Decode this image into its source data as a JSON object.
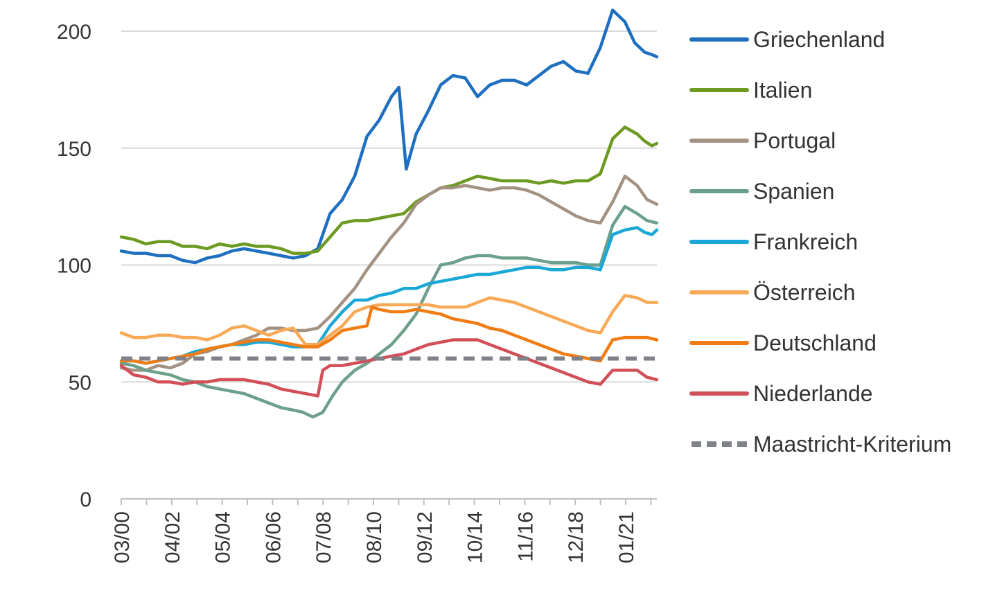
{
  "chart_data": {
    "type": "line",
    "title": "",
    "xlabel": "",
    "ylabel": "",
    "ylim": [
      0,
      200
    ],
    "yticks": [
      0,
      50,
      100,
      150,
      200
    ],
    "xticks": [
      "03/00",
      "04/02",
      "05/04",
      "06/06",
      "07/08",
      "08/10",
      "09/12",
      "10/14",
      "11/16",
      "12/18",
      "01/21"
    ],
    "x_range": [
      2000.0,
      2021.8
    ],
    "grid": "horizontal",
    "legend_position": "right",
    "series": [
      {
        "name": "Griechenland",
        "color": "#1f6fc1",
        "dashed": false,
        "x": [
          2000.0,
          2000.5,
          2001.0,
          2001.5,
          2002.0,
          2002.5,
          2003.0,
          2003.5,
          2004.0,
          2004.5,
          2005.0,
          2005.5,
          2006.0,
          2006.5,
          2007.0,
          2007.5,
          2008.0,
          2008.5,
          2009.0,
          2009.5,
          2010.0,
          2010.5,
          2011.0,
          2011.3,
          2011.6,
          2012.0,
          2012.5,
          2013.0,
          2013.5,
          2014.0,
          2014.5,
          2015.0,
          2015.5,
          2016.0,
          2016.5,
          2017.0,
          2017.5,
          2018.0,
          2018.5,
          2019.0,
          2019.5,
          2020.0,
          2020.5,
          2020.9,
          2021.3,
          2021.6,
          2021.8
        ],
        "y": [
          106,
          105,
          105,
          104,
          104,
          102,
          101,
          103,
          104,
          106,
          107,
          106,
          105,
          104,
          103,
          104,
          107,
          122,
          128,
          138,
          155,
          162,
          172,
          176,
          141,
          156,
          166,
          177,
          181,
          180,
          172,
          177,
          179,
          179,
          177,
          181,
          185,
          187,
          183,
          182,
          193,
          209,
          204,
          195,
          191,
          190,
          189
        ]
      },
      {
        "name": "Italien",
        "color": "#6c9a22",
        "dashed": false,
        "x": [
          2000.0,
          2000.5,
          2001.0,
          2001.5,
          2002.0,
          2002.5,
          2003.0,
          2003.5,
          2004.0,
          2004.5,
          2005.0,
          2005.5,
          2006.0,
          2006.5,
          2007.0,
          2007.5,
          2008.0,
          2008.5,
          2009.0,
          2009.5,
          2010.0,
          2010.5,
          2011.0,
          2011.5,
          2012.0,
          2012.5,
          2013.0,
          2013.5,
          2014.0,
          2014.5,
          2015.0,
          2015.5,
          2016.0,
          2016.5,
          2017.0,
          2017.5,
          2018.0,
          2018.5,
          2019.0,
          2019.5,
          2020.0,
          2020.5,
          2021.0,
          2021.3,
          2021.6,
          2021.8
        ],
        "y": [
          112,
          111,
          109,
          110,
          110,
          108,
          108,
          107,
          109,
          108,
          109,
          108,
          108,
          107,
          105,
          105,
          106,
          112,
          118,
          119,
          119,
          120,
          121,
          122,
          127,
          130,
          133,
          134,
          136,
          138,
          137,
          136,
          136,
          136,
          135,
          136,
          135,
          136,
          136,
          139,
          154,
          159,
          156,
          153,
          151,
          152
        ]
      },
      {
        "name": "Portugal",
        "color": "#a39282",
        "dashed": false,
        "x": [
          2000.0,
          2000.5,
          2001.0,
          2001.5,
          2002.0,
          2002.5,
          2003.0,
          2003.5,
          2004.0,
          2004.5,
          2005.0,
          2005.5,
          2006.0,
          2006.5,
          2007.0,
          2007.5,
          2008.0,
          2008.5,
          2009.0,
          2009.5,
          2010.0,
          2010.5,
          2011.0,
          2011.5,
          2012.0,
          2012.5,
          2013.0,
          2013.5,
          2014.0,
          2014.5,
          2015.0,
          2015.5,
          2016.0,
          2016.5,
          2017.0,
          2017.5,
          2018.0,
          2018.5,
          2019.0,
          2019.5,
          2020.0,
          2020.5,
          2021.0,
          2021.4,
          2021.8
        ],
        "y": [
          56,
          55,
          55,
          57,
          56,
          58,
          62,
          63,
          65,
          66,
          68,
          70,
          73,
          73,
          72,
          72,
          73,
          78,
          84,
          90,
          98,
          105,
          112,
          118,
          126,
          130,
          133,
          133,
          134,
          133,
          132,
          133,
          133,
          132,
          130,
          127,
          124,
          121,
          119,
          118,
          127,
          138,
          134,
          128,
          126
        ]
      },
      {
        "name": "Spanien",
        "color": "#6ca08a",
        "dashed": false,
        "x": [
          2000.0,
          2000.5,
          2001.0,
          2001.5,
          2002.0,
          2002.5,
          2003.0,
          2003.5,
          2004.0,
          2004.5,
          2005.0,
          2005.5,
          2006.0,
          2006.5,
          2007.0,
          2007.4,
          2007.8,
          2008.2,
          2008.6,
          2009.0,
          2009.5,
          2010.0,
          2010.5,
          2011.0,
          2011.5,
          2012.0,
          2012.5,
          2013.0,
          2013.5,
          2014.0,
          2014.5,
          2015.0,
          2015.5,
          2016.0,
          2016.5,
          2017.0,
          2017.5,
          2018.0,
          2018.5,
          2019.0,
          2019.5,
          2020.0,
          2020.5,
          2021.0,
          2021.4,
          2021.8
        ],
        "y": [
          58,
          57,
          55,
          54,
          53,
          51,
          50,
          48,
          47,
          46,
          45,
          43,
          41,
          39,
          38,
          37,
          35,
          37,
          44,
          50,
          55,
          58,
          62,
          66,
          72,
          79,
          90,
          100,
          101,
          103,
          104,
          104,
          103,
          103,
          103,
          102,
          101,
          101,
          101,
          100,
          100,
          117,
          125,
          122,
          119,
          118
        ]
      },
      {
        "name": "Frankreich",
        "color": "#1ba8d6",
        "dashed": false,
        "x": [
          2000.0,
          2000.5,
          2001.0,
          2001.5,
          2002.0,
          2002.5,
          2003.0,
          2003.5,
          2004.0,
          2004.5,
          2005.0,
          2005.5,
          2006.0,
          2006.5,
          2007.0,
          2007.5,
          2008.0,
          2008.5,
          2009.0,
          2009.5,
          2010.0,
          2010.5,
          2011.0,
          2011.5,
          2012.0,
          2012.5,
          2013.0,
          2013.5,
          2014.0,
          2014.5,
          2015.0,
          2015.5,
          2016.0,
          2016.5,
          2017.0,
          2017.5,
          2018.0,
          2018.5,
          2019.0,
          2019.5,
          2020.0,
          2020.5,
          2021.0,
          2021.3,
          2021.6,
          2021.8
        ],
        "y": [
          59,
          59,
          58,
          59,
          60,
          61,
          63,
          64,
          65,
          66,
          66,
          67,
          67,
          66,
          65,
          65,
          66,
          74,
          80,
          85,
          85,
          87,
          88,
          90,
          90,
          92,
          93,
          94,
          95,
          96,
          96,
          97,
          98,
          99,
          99,
          98,
          98,
          99,
          99,
          98,
          113,
          115,
          116,
          114,
          113,
          115
        ]
      },
      {
        "name": "Österreich",
        "color": "#f8a955",
        "dashed": false,
        "x": [
          2000.0,
          2000.5,
          2001.0,
          2001.5,
          2002.0,
          2002.5,
          2003.0,
          2003.5,
          2004.0,
          2004.5,
          2005.0,
          2005.5,
          2006.0,
          2006.5,
          2007.0,
          2007.5,
          2008.0,
          2008.5,
          2009.0,
          2009.5,
          2010.0,
          2010.5,
          2011.0,
          2011.5,
          2012.0,
          2012.5,
          2013.0,
          2013.5,
          2014.0,
          2014.5,
          2015.0,
          2015.5,
          2016.0,
          2016.5,
          2017.0,
          2017.5,
          2018.0,
          2018.5,
          2019.0,
          2019.5,
          2020.0,
          2020.5,
          2021.0,
          2021.4,
          2021.8
        ],
        "y": [
          71,
          69,
          69,
          70,
          70,
          69,
          69,
          68,
          70,
          73,
          74,
          72,
          70,
          72,
          73,
          66,
          66,
          70,
          74,
          80,
          82,
          83,
          83,
          83,
          83,
          83,
          82,
          82,
          82,
          84,
          86,
          85,
          84,
          82,
          80,
          78,
          76,
          74,
          72,
          71,
          80,
          87,
          86,
          84,
          84
        ]
      },
      {
        "name": "Deutschland",
        "color": "#f07c14",
        "dashed": false,
        "x": [
          2000.0,
          2000.5,
          2001.0,
          2001.5,
          2002.0,
          2002.5,
          2003.0,
          2003.5,
          2004.0,
          2004.5,
          2005.0,
          2005.5,
          2006.0,
          2006.5,
          2007.0,
          2007.5,
          2008.0,
          2008.5,
          2009.0,
          2009.5,
          2010.0,
          2010.2,
          2010.5,
          2011.0,
          2011.5,
          2012.0,
          2012.5,
          2013.0,
          2013.5,
          2014.0,
          2014.5,
          2015.0,
          2015.5,
          2016.0,
          2016.5,
          2017.0,
          2017.5,
          2018.0,
          2018.5,
          2019.0,
          2019.5,
          2020.0,
          2020.5,
          2021.0,
          2021.4,
          2021.8
        ],
        "y": [
          59,
          59,
          58,
          59,
          60,
          61,
          62,
          64,
          65,
          66,
          67,
          68,
          68,
          67,
          66,
          65,
          65,
          68,
          72,
          73,
          74,
          82,
          81,
          80,
          80,
          81,
          80,
          79,
          77,
          76,
          75,
          73,
          72,
          70,
          68,
          66,
          64,
          62,
          61,
          60,
          59,
          68,
          69,
          69,
          69,
          68
        ]
      },
      {
        "name": "Niederlande",
        "color": "#d24e58",
        "dashed": false,
        "x": [
          2000.0,
          2000.5,
          2001.0,
          2001.5,
          2002.0,
          2002.5,
          2003.0,
          2003.5,
          2004.0,
          2004.5,
          2005.0,
          2005.5,
          2006.0,
          2006.5,
          2007.0,
          2007.5,
          2008.0,
          2008.2,
          2008.5,
          2009.0,
          2009.5,
          2010.0,
          2010.5,
          2011.0,
          2011.5,
          2012.0,
          2012.5,
          2013.0,
          2013.5,
          2014.0,
          2014.5,
          2015.0,
          2015.5,
          2016.0,
          2016.5,
          2017.0,
          2017.5,
          2018.0,
          2018.5,
          2019.0,
          2019.5,
          2020.0,
          2020.5,
          2021.0,
          2021.4,
          2021.8
        ],
        "y": [
          57,
          53,
          52,
          50,
          50,
          49,
          50,
          50,
          51,
          51,
          51,
          50,
          49,
          47,
          46,
          45,
          44,
          55,
          57,
          57,
          58,
          59,
          60,
          61,
          62,
          64,
          66,
          67,
          68,
          68,
          68,
          66,
          64,
          62,
          60,
          58,
          56,
          54,
          52,
          50,
          49,
          55,
          55,
          55,
          52,
          51
        ]
      },
      {
        "name": "Maastricht-Kriterium",
        "color": "#7f8389",
        "dashed": true,
        "x": [
          2000.0,
          2021.8
        ],
        "y": [
          60,
          60
        ]
      }
    ]
  }
}
